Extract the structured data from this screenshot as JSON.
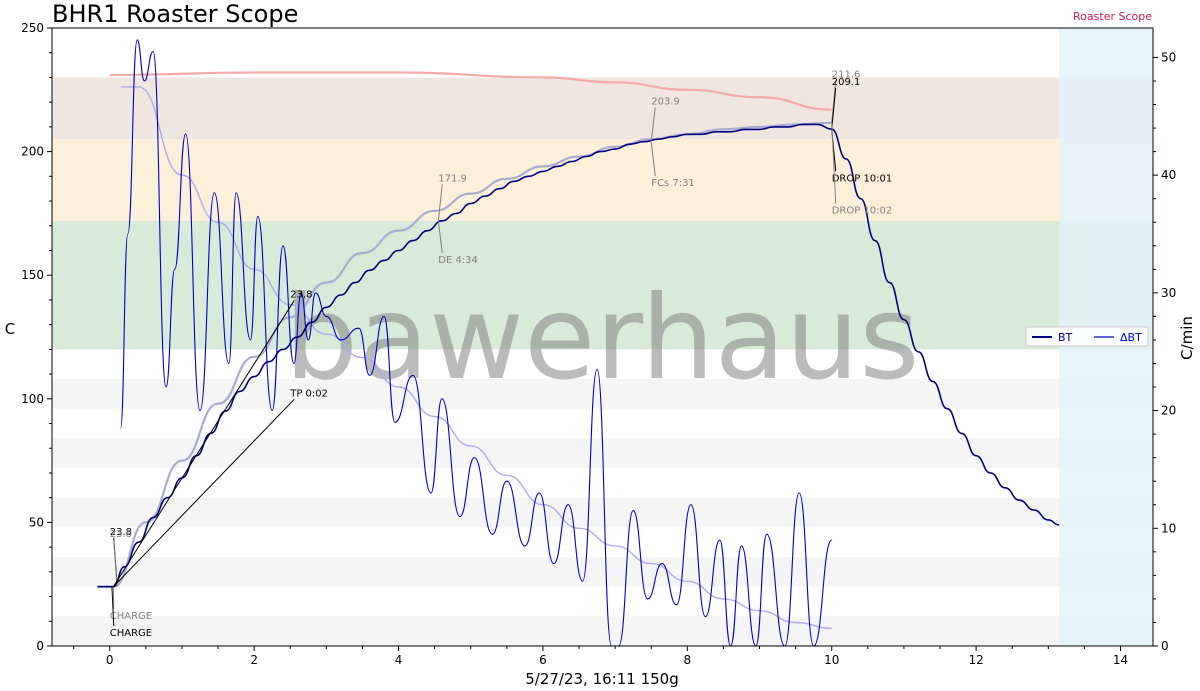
{
  "page": {
    "title": "BHR1 Roaster Scope",
    "corner_label": "Roaster Scope"
  },
  "chart_data": {
    "type": "line",
    "title": "BHR1 Roaster Scope",
    "xlabel": "5/27/23, 16:11   150g",
    "ylabel": "C",
    "y2label": "C/min",
    "xlim": [
      -0.8,
      14.45
    ],
    "ylim": [
      0,
      250
    ],
    "y2lim": [
      0,
      52.5
    ],
    "x_ticks": [
      0,
      2,
      4,
      6,
      8,
      10,
      12,
      14
    ],
    "y_ticks": [
      0,
      50,
      100,
      150,
      200,
      250
    ],
    "y2_ticks": [
      0,
      10,
      20,
      30,
      40,
      50
    ],
    "grid": false,
    "legend": {
      "position": "right",
      "entries": [
        "BT",
        "ΔBT"
      ]
    },
    "watermark": "bawerhaus",
    "colors": {
      "bt": "#00007f",
      "ror": "#0000cc",
      "bt_smooth": "#aaaad2",
      "ror_smooth": "#aaaaee",
      "et_smooth": "#f4a8a8",
      "annotation_dark": "#000000",
      "annotation_grey": "#808080",
      "corner_label": "#c2185b"
    },
    "bands": [
      {
        "y": [
          205,
          230
        ],
        "color": "#f0e6e0"
      },
      {
        "y": [
          172,
          205
        ],
        "color": "#fdf0d9"
      },
      {
        "y": [
          120,
          172
        ],
        "color": "#d8ebd8"
      },
      {
        "y": [
          96,
          108
        ],
        "color": "#f5f5f5"
      },
      {
        "y": [
          72,
          84
        ],
        "color": "#f5f5f5"
      },
      {
        "y": [
          48,
          60
        ],
        "color": "#f5f5f5"
      },
      {
        "y": [
          24,
          36
        ],
        "color": "#f5f5f5"
      },
      {
        "y": [
          0,
          12
        ],
        "color": "#f5f5f5"
      }
    ],
    "post_drop_region": {
      "x": [
        13.15,
        14.45
      ],
      "color": "#e3f2f9"
    },
    "series": [
      {
        "name": "BT",
        "axis": "left",
        "x": [
          -0.17,
          0.05,
          0.2,
          0.4,
          0.6,
          0.8,
          1.0,
          1.2,
          1.4,
          1.6,
          1.8,
          2.0,
          2.2,
          2.4,
          2.6,
          2.8,
          3.0,
          3.2,
          3.4,
          3.6,
          3.8,
          4.0,
          4.2,
          4.4,
          4.6,
          4.8,
          5.0,
          5.2,
          5.4,
          5.6,
          5.8,
          6.0,
          6.2,
          6.4,
          6.6,
          6.8,
          7.0,
          7.2,
          7.4,
          7.6,
          7.8,
          8.0,
          8.2,
          8.4,
          8.6,
          8.8,
          9.0,
          9.2,
          9.4,
          9.6,
          9.8,
          10.0,
          10.2,
          10.4,
          10.6,
          10.8,
          11.0,
          11.2,
          11.4,
          11.6,
          11.8,
          12.0,
          12.2,
          12.4,
          12.6,
          12.8,
          13.0,
          13.15
        ],
        "values": [
          24,
          24,
          32,
          42,
          52,
          60,
          68,
          77,
          86,
          95,
          103,
          109,
          115,
          120,
          125,
          131,
          137,
          142,
          147,
          152,
          156,
          160,
          164,
          168,
          172,
          175,
          179,
          182,
          185,
          188,
          190,
          192,
          194,
          196,
          198,
          200,
          201,
          203,
          204,
          205,
          206,
          207,
          207,
          208,
          208,
          209,
          209,
          210,
          210,
          211,
          211,
          209.1,
          197,
          181,
          164,
          147,
          132,
          119,
          107,
          96,
          86,
          77,
          70,
          64,
          59,
          55,
          51,
          49
        ]
      },
      {
        "name": "ΔBT",
        "axis": "right",
        "x": [
          0.15,
          0.25,
          0.38,
          0.48,
          0.6,
          0.78,
          0.9,
          1.05,
          1.25,
          1.45,
          1.65,
          1.75,
          1.95,
          2.05,
          2.25,
          2.4,
          2.55,
          2.65,
          2.75,
          2.85,
          3.0,
          3.2,
          3.45,
          3.6,
          3.8,
          3.95,
          4.2,
          4.45,
          4.6,
          4.85,
          5.05,
          5.3,
          5.5,
          5.75,
          5.95,
          6.15,
          6.35,
          6.55,
          6.75,
          6.95,
          7.05,
          7.25,
          7.45,
          7.65,
          7.85,
          8.05,
          8.25,
          8.45,
          8.6,
          8.75,
          8.95,
          9.1,
          9.35,
          9.55,
          9.75,
          10.0
        ],
        "values": [
          18.5,
          35,
          51.5,
          48,
          50.5,
          22,
          32,
          43.5,
          20,
          38.5,
          24,
          38.5,
          26,
          36.5,
          20,
          34,
          24,
          30,
          26,
          30,
          28,
          26,
          27,
          23,
          28,
          19,
          23,
          13,
          21,
          11,
          16,
          9.5,
          14,
          8.5,
          13,
          7,
          12,
          5.5,
          23.5,
          0,
          0,
          11.5,
          4,
          7,
          3.5,
          12,
          2.5,
          9,
          0,
          8.5,
          0,
          9.5,
          0,
          13,
          0,
          9
        ]
      },
      {
        "name": "BT smoothed",
        "axis": "left",
        "x": [
          -0.17,
          0.05,
          0.5,
          1.0,
          1.5,
          2.0,
          2.5,
          3.0,
          3.5,
          4.0,
          4.5,
          5.0,
          5.5,
          6.0,
          6.5,
          7.0,
          7.5,
          8.0,
          8.5,
          9.0,
          9.5,
          10.0
        ],
        "values": [
          24,
          24,
          50,
          75,
          98,
          117,
          133,
          147,
          159,
          168,
          176,
          183,
          189,
          194,
          198,
          202,
          205,
          207,
          209,
          210,
          211,
          211.6
        ]
      },
      {
        "name": "ΔBT smoothed",
        "axis": "right",
        "x": [
          0.15,
          0.4,
          1.0,
          1.5,
          2.0,
          2.5,
          3.0,
          3.5,
          4.0,
          4.5,
          5.0,
          5.5,
          6.0,
          6.5,
          7.0,
          7.5,
          8.0,
          8.5,
          9.0,
          9.5,
          10.0
        ],
        "values": [
          47.5,
          47.5,
          40,
          36,
          32,
          29,
          26.5,
          24.5,
          22,
          19.5,
          17,
          14.5,
          12,
          10,
          8.5,
          7,
          5.5,
          4,
          3,
          2,
          1.5
        ]
      },
      {
        "name": "ET smoothed",
        "axis": "left",
        "x": [
          0,
          2,
          4,
          6,
          7,
          8,
          9,
          10
        ],
        "values": [
          231,
          232,
          232,
          230,
          228,
          225,
          222,
          217
        ]
      }
    ],
    "annotations": [
      {
        "text": "23.8",
        "x": 0,
        "y": 45,
        "point": [
          0.1,
          25
        ],
        "color": "dark"
      },
      {
        "text": "23.8",
        "x": 0,
        "y": 44,
        "point": [
          0.1,
          24
        ],
        "color": "grey"
      },
      {
        "text": "CHARGE",
        "x": 0,
        "y": 11,
        "point": [
          0.05,
          24
        ],
        "color": "grey"
      },
      {
        "text": "CHARGE",
        "x": 0,
        "y": 4,
        "point": [
          0.03,
          24
        ],
        "color": "dark"
      },
      {
        "text": "23.8",
        "x": 2.5,
        "y": 141,
        "point": [
          0.05,
          24
        ],
        "color": "dark"
      },
      {
        "text": "TP 0:02",
        "x": 2.5,
        "y": 101,
        "point": [
          0.05,
          24
        ],
        "color": "dark"
      },
      {
        "text": "171.9",
        "x": 4.55,
        "y": 188,
        "point": [
          4.55,
          171.9
        ],
        "color": "grey"
      },
      {
        "text": "DE 4:34",
        "x": 4.55,
        "y": 155,
        "point": [
          4.55,
          171.9
        ],
        "color": "grey"
      },
      {
        "text": "203.9",
        "x": 7.5,
        "y": 219,
        "point": [
          7.5,
          203.9
        ],
        "color": "grey"
      },
      {
        "text": "FCs 7:31",
        "x": 7.5,
        "y": 186,
        "point": [
          7.5,
          203.9
        ],
        "color": "grey"
      },
      {
        "text": "211.6",
        "x": 10.0,
        "y": 230,
        "point": [
          10.0,
          211.6
        ],
        "color": "grey"
      },
      {
        "text": "209.1",
        "x": 10.0,
        "y": 227,
        "point": [
          10.0,
          209.1
        ],
        "color": "dark"
      },
      {
        "text": "DROP 10:01",
        "x": 10.0,
        "y": 188,
        "point": [
          10.0,
          209.1
        ],
        "color": "dark"
      },
      {
        "text": "DROP 10:02",
        "x": 10.0,
        "y": 175,
        "point": [
          10.0,
          211.6
        ],
        "color": "grey"
      }
    ]
  }
}
